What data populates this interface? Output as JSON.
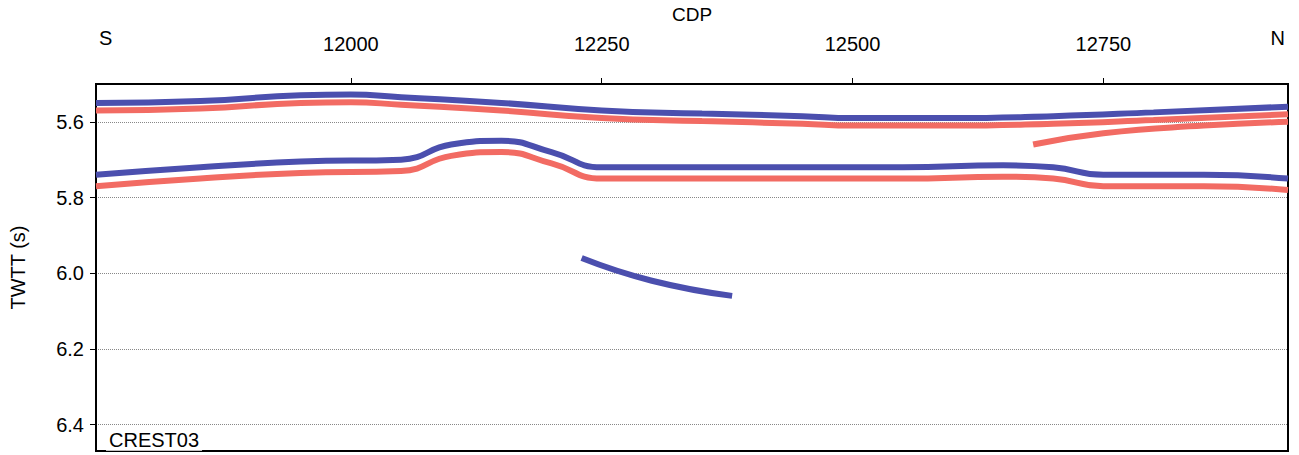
{
  "chart_data": {
    "type": "line",
    "x_label": "CDP",
    "y_label": "TWTT (s)",
    "xlim": [
      11746,
      12934
    ],
    "xticks": [
      12000,
      12250,
      12500,
      12750
    ],
    "ylim": [
      5.5,
      6.47
    ],
    "yticks": [
      5.6,
      5.8,
      {
        "value": 6,
        "label": "6.0"
      },
      6.2,
      6.4
    ],
    "grid": true,
    "annotations": [
      {
        "text": "S",
        "x": 11746
      },
      {
        "text": "N",
        "x": 12934
      },
      {
        "text": "CREST03",
        "x": 11752,
        "y": 6.44
      }
    ],
    "series": [
      {
        "color": "#f26b63",
        "x": [
          11746,
          11850,
          11950,
          12000,
          12050,
          12150,
          12250,
          12350,
          12450,
          12500,
          12600,
          12700,
          12800,
          12934
        ],
        "values": [
          5.57,
          5.565,
          5.55,
          5.548,
          5.555,
          5.57,
          5.59,
          5.598,
          5.605,
          5.61,
          5.61,
          5.605,
          5.595,
          5.58
        ]
      },
      {
        "color": "#4b4fae",
        "x": [
          11746,
          11850,
          11950,
          12000,
          12050,
          12150,
          12250,
          12350,
          12450,
          12500,
          12600,
          12700,
          12800,
          12934
        ],
        "values": [
          5.55,
          5.545,
          5.53,
          5.528,
          5.535,
          5.55,
          5.57,
          5.578,
          5.585,
          5.59,
          5.59,
          5.585,
          5.575,
          5.56
        ]
      },
      {
        "color": "#f26b63",
        "x": [
          11746,
          11850,
          11950,
          12050,
          12100,
          12150,
          12200,
          12250,
          12350,
          12450,
          12550,
          12650,
          12700,
          12750,
          12850,
          12934
        ],
        "values": [
          5.77,
          5.75,
          5.735,
          5.73,
          5.69,
          5.68,
          5.71,
          5.75,
          5.75,
          5.75,
          5.75,
          5.745,
          5.75,
          5.77,
          5.77,
          5.78
        ]
      },
      {
        "color": "#4b4fae",
        "x": [
          11746,
          11850,
          11950,
          12050,
          12100,
          12150,
          12200,
          12250,
          12350,
          12450,
          12550,
          12650,
          12700,
          12750,
          12850,
          12934
        ],
        "values": [
          5.74,
          5.72,
          5.705,
          5.7,
          5.66,
          5.65,
          5.68,
          5.72,
          5.72,
          5.72,
          5.72,
          5.715,
          5.72,
          5.74,
          5.74,
          5.75
        ]
      },
      {
        "color": "#f26b63",
        "x": [
          12680,
          12750,
          12850,
          12934
        ],
        "values": [
          5.66,
          5.63,
          5.61,
          5.6
        ]
      },
      {
        "color": "#4b4fae",
        "x": [
          12230,
          12300,
          12380
        ],
        "values": [
          5.96,
          6.02,
          6.06
        ]
      }
    ]
  }
}
